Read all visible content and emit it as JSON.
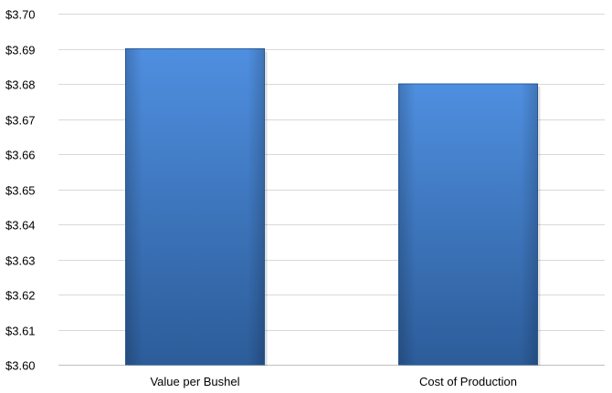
{
  "chart_data": {
    "type": "bar",
    "title": "",
    "xlabel": "",
    "ylabel": "",
    "categories": [
      "Value per Bushel",
      "Cost of Production"
    ],
    "values": [
      3.69,
      3.68
    ],
    "ylim": [
      3.6,
      3.7
    ],
    "ytick_values": [
      3.6,
      3.61,
      3.62,
      3.63,
      3.64,
      3.65,
      3.66,
      3.67,
      3.68,
      3.69,
      3.7
    ],
    "ytick_labels": [
      "$3.60",
      "$3.61",
      "$3.62",
      "$3.63",
      "$3.64",
      "$3.65",
      "$3.66",
      "$3.67",
      "$3.68",
      "$3.69",
      "$3.70"
    ],
    "grid": true,
    "legend": "none",
    "colors": {
      "bar_top": "#4f8fe0",
      "bar_bottom": "#2c5c99",
      "grid": "#d9d9d9"
    }
  }
}
